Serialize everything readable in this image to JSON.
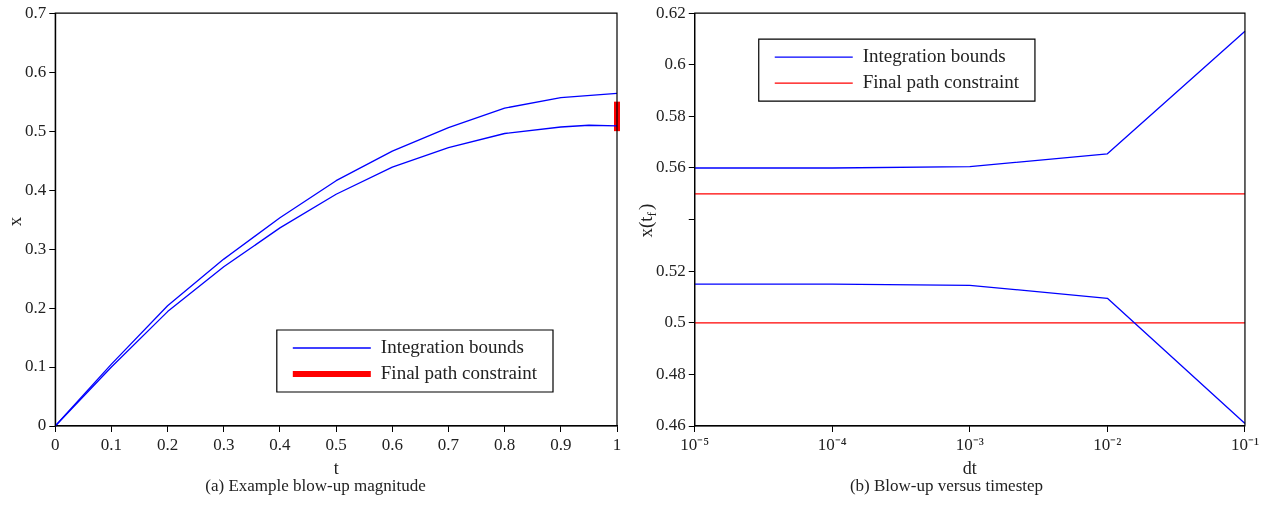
{
  "chart_data": [
    {
      "type": "line",
      "title": "(a) Example blow-up magnitude",
      "xlabel": "t",
      "ylabel": "x",
      "xlim": [
        0,
        1
      ],
      "ylim": [
        0,
        0.7
      ],
      "xticks": [
        0,
        0.1,
        0.2,
        0.3,
        0.4,
        0.5,
        0.6,
        0.7,
        0.8,
        0.9,
        1
      ],
      "yticks": [
        0,
        0.1,
        0.2,
        0.3,
        0.4,
        0.5,
        0.6,
        0.7
      ],
      "grid": false,
      "legend": "bottom right",
      "marker": "none",
      "line_style": "solid",
      "series": [
        {
          "name": "Integration bounds",
          "color": "#0000ff",
          "x": [
            0,
            0.1,
            0.2,
            0.3,
            0.4,
            0.5,
            0.6,
            0.7,
            0.8,
            0.9,
            1
          ],
          "values": [
            0,
            0.105,
            0.204,
            0.283,
            0.353,
            0.416,
            0.466,
            0.506,
            0.539,
            0.557,
            0.564
          ]
        },
        {
          "color": "#0000ff",
          "x": [
            0,
            0.1,
            0.2,
            0.3,
            0.4,
            0.5,
            0.6,
            0.7,
            0.8,
            0.9,
            0.95,
            1
          ],
          "values": [
            0,
            0.1,
            0.194,
            0.27,
            0.336,
            0.393,
            0.439,
            0.472,
            0.496,
            0.507,
            0.51,
            0.509
          ]
        },
        {
          "name": "Final path constraint",
          "color": "#ff0000",
          "x": [
            1,
            1
          ],
          "values": [
            0.5,
            0.55
          ]
        }
      ]
    },
    {
      "type": "line",
      "title": "(b) Blow-up versus timestep",
      "xlabel": "dt",
      "ylabel": "x(t$_{f}$)",
      "log": "x",
      "xlim": [
        1e-05,
        0.1
      ],
      "ylim": [
        0.46,
        0.62
      ],
      "xticks": [
        {
          "value": 1e-05,
          "label": "10⁻⁵"
        },
        {
          "value": 0.0001,
          "label": "10⁻⁴"
        },
        {
          "value": 0.001,
          "label": "10⁻³"
        },
        {
          "value": 0.01,
          "label": "10⁻²"
        },
        {
          "value": 0.1,
          "label": "10⁻¹"
        }
      ],
      "yticks": [
        0.46,
        0.48,
        0.5,
        0.52,
        {
          "value": 0.54,
          "label": null
        },
        0.56,
        0.58,
        0.6,
        0.62
      ],
      "grid": false,
      "legend": "top left",
      "marker": "none",
      "line_style": "solid",
      "series": [
        {
          "name": "Integration bounds",
          "color": "#0000ff",
          "x": [
            1e-05,
            0.0001,
            0.001,
            0.01,
            0.1
          ],
          "values": [
            0.56,
            0.56,
            0.5605,
            0.5655,
            0.613
          ]
        },
        {
          "color": "#0000ff",
          "x": [
            1e-05,
            0.0001,
            0.001,
            0.01,
            0.1
          ],
          "values": [
            0.515,
            0.515,
            0.5145,
            0.5095,
            0.461
          ]
        },
        {
          "name": "Final path constraint",
          "color": "#ff0000",
          "x": [
            1e-05,
            0.1
          ],
          "values": [
            0.55,
            0.55
          ]
        },
        {
          "color": "#ff0000",
          "x": [
            1e-05,
            0.1
          ],
          "values": [
            0.5,
            0.5
          ]
        }
      ]
    }
  ]
}
